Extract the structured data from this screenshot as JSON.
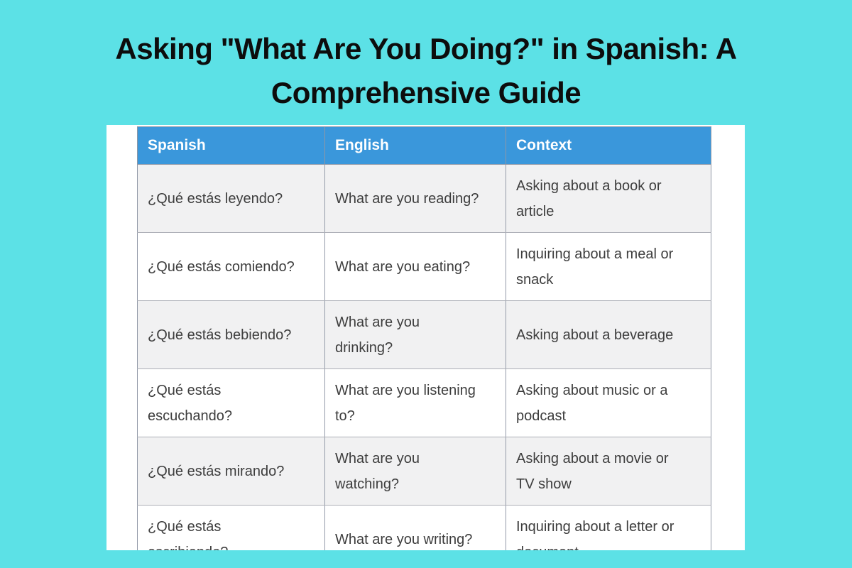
{
  "page": {
    "title": "Asking \"What Are You Doing?\" in Spanish: A\nComprehensive Guide"
  },
  "colors": {
    "background_turquoise": "#5ce1e6",
    "header_blue": "#3a97db",
    "row_alt_gray": "#f1f1f2",
    "row_white": "#ffffff",
    "cell_text": "#3d3d3d",
    "title_text": "#0d0d0d",
    "header_text": "#ffffff"
  },
  "table": {
    "headers": [
      "Spanish",
      "English",
      "Context"
    ],
    "rows": [
      {
        "spanish": "¿Qué estás leyendo?",
        "english": "What are you reading?",
        "context": "Asking about a book or\narticle"
      },
      {
        "spanish": "¿Qué estás comiendo?",
        "english": "What are you eating?",
        "context": "Inquiring about a meal or\nsnack"
      },
      {
        "spanish": "¿Qué estás bebiendo?",
        "english": "What are you\ndrinking?",
        "context": "Asking about a beverage"
      },
      {
        "spanish": "¿Qué estás\nescuchando?",
        "english": "What are you listening\nto?",
        "context": "Asking about music or a\npodcast"
      },
      {
        "spanish": "¿Qué estás mirando?",
        "english": "What are you\nwatching?",
        "context": "Asking about a movie or\nTV show"
      },
      {
        "spanish": "¿Qué estás\nescribiendo?",
        "english": "What are you writing?",
        "context": "Inquiring about a letter or\ndocument"
      }
    ]
  }
}
